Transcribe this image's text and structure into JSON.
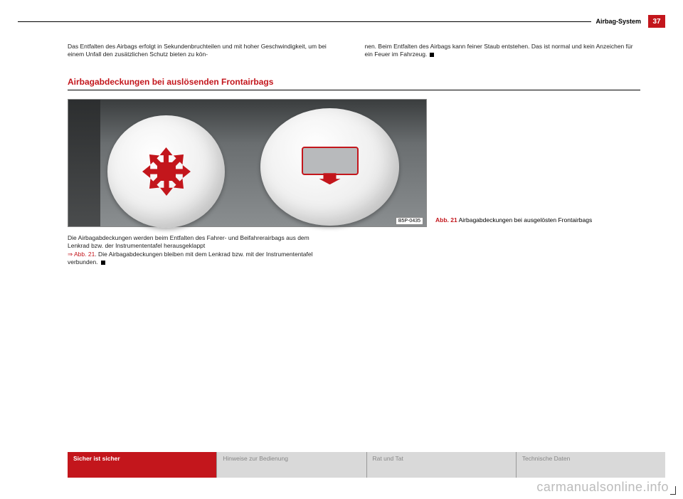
{
  "header": {
    "section": "Airbag-System",
    "page_number": "37"
  },
  "intro": {
    "left": "Das Entfalten des Airbags erfolgt in Sekundenbruchteilen und mit hoher Ge­schwindigkeit, um bei einem Unfall den zusätzlichen Schutz bieten zu kön-",
    "right": "nen. Beim Entfalten des Airbags kann feiner Staub entstehen. Das ist nor­mal und kein Anzeichen für ein Feuer im Fahrzeug."
  },
  "section_title": "Airbagabdeckungen bei auslösenden Frontairbags",
  "figure": {
    "code": "B5P-0435",
    "caption_abb": "Abb. 21",
    "caption_text": "Airbagabdeckungen bei ausgelösten Frontair­bags"
  },
  "post_figure": {
    "line1": "Die Airbagabdeckungen werden beim Entfalten des Fahrer- und Beifahrerair­bags aus dem Lenkrad bzw. der Instrumententafel herausgeklappt",
    "link": "⇒ Abb. 21",
    "line2": ". Die Airbagabdeckungen bleiben mit dem Lenkrad bzw. mit der Instrumententafel verbunden."
  },
  "footer": {
    "tabs": [
      "Sicher ist sicher",
      "Hinweise zur Bedienung",
      "Rat und Tat",
      "Technische Daten"
    ]
  },
  "watermark": "carmanualsonline.info",
  "colors": {
    "brand_red": "#c3161c",
    "tab_gray": "#d9d9d9"
  }
}
